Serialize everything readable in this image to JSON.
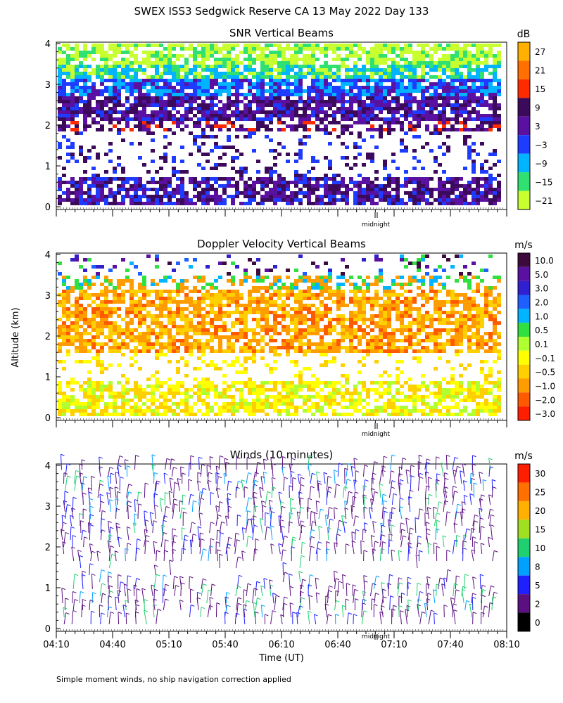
{
  "figure": {
    "title": "SWEX ISS3 Sedgwick Reserve CA  13 May 2022 Day 133",
    "ylabel": "Altitude (km)",
    "xlabel": "Time (UT)",
    "footnote": "Simple moment winds, no ship navigation correction applied",
    "midnight_label": "midnight",
    "colors": {
      "background": "#ffffff",
      "axis": "#000000"
    }
  },
  "chart_data": [
    {
      "id": "snr",
      "type": "heatmap",
      "title": "SNR Vertical Beams",
      "ylim": [
        0,
        4
      ],
      "yticks": [
        "0",
        "1",
        "2",
        "3",
        "4"
      ],
      "colorbar": {
        "unit": "dB",
        "labels": [
          "27",
          "21",
          "15",
          "9",
          "3",
          "−3",
          "−9",
          "−15",
          "−21"
        ],
        "colors": [
          "#ffb000",
          "#ff7000",
          "#ff2a00",
          "#3c0a5a",
          "#5a10a0",
          "#1e3cff",
          "#00b4ff",
          "#30e070",
          "#c8ff30"
        ]
      },
      "grid": false
    },
    {
      "id": "doppler",
      "type": "heatmap",
      "title": "Doppler Velocity Vertical Beams",
      "ylim": [
        0,
        4
      ],
      "yticks": [
        "0",
        "1",
        "2",
        "3",
        "4"
      ],
      "colorbar": {
        "unit": "m/s",
        "labels": [
          "10.0",
          "5.0",
          "3.0",
          "2.0",
          "1.0",
          "0.5",
          "0.1",
          "−0.1",
          "−0.5",
          "−1.0",
          "−2.0",
          "−3.0"
        ],
        "colors": [
          "#3c0a3c",
          "#5a10a0",
          "#3020d0",
          "#1e60ff",
          "#00b4ff",
          "#30e040",
          "#b0ff30",
          "#ffff00",
          "#ffd000",
          "#ff9c00",
          "#ff5a00",
          "#ff1e00"
        ]
      },
      "grid": false
    },
    {
      "id": "winds",
      "type": "scatter",
      "title": "Winds (10 minutes)",
      "ylim": [
        0,
        4
      ],
      "yticks": [
        "0",
        "1",
        "2",
        "3",
        "4"
      ],
      "xticks": [
        "04:10",
        "04:40",
        "05:10",
        "05:40",
        "06:10",
        "06:40",
        "07:10",
        "07:40",
        "08:10"
      ],
      "colorbar": {
        "unit": "m/s",
        "labels": [
          "30",
          "25",
          "20",
          "15",
          "10",
          "8",
          "5",
          "2",
          "0"
        ],
        "colors": [
          "#ff1e00",
          "#ff7000",
          "#ffb000",
          "#a0e020",
          "#20d070",
          "#00a0ff",
          "#1e20ff",
          "#5a1080",
          "#000000"
        ]
      },
      "grid": false
    }
  ]
}
